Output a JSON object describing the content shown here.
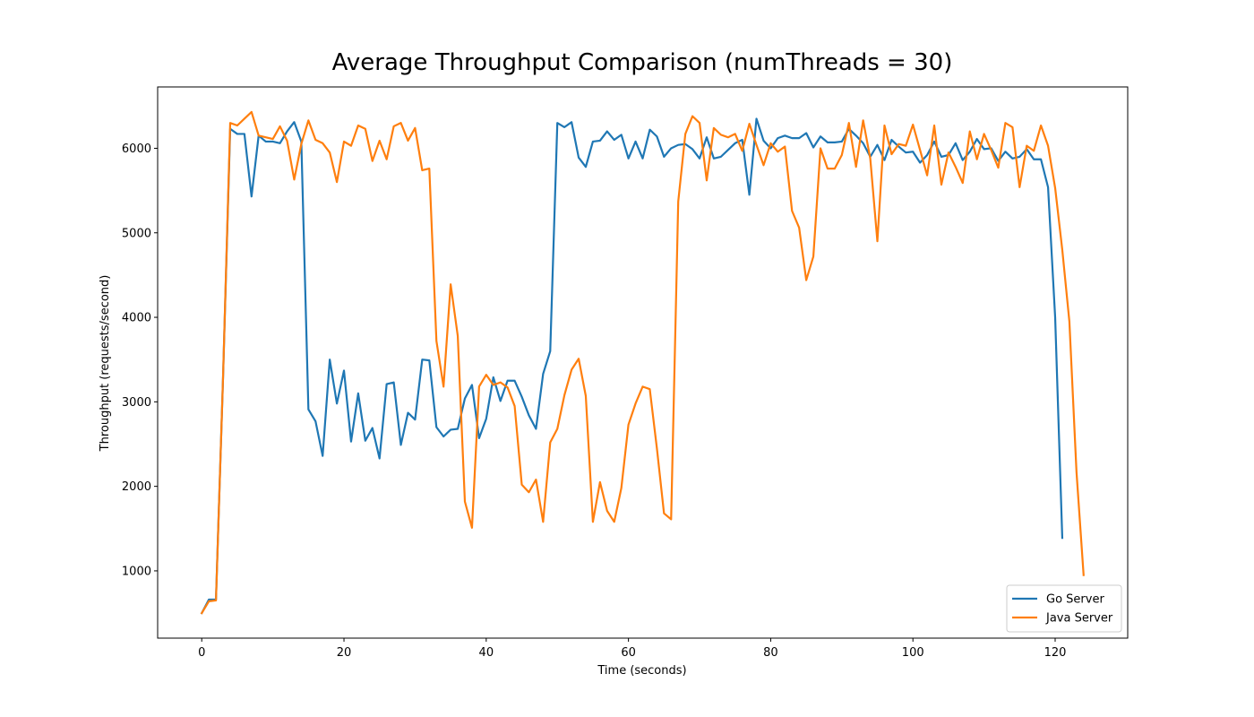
{
  "chart_data": {
    "type": "line",
    "title": "Average Throughput Comparison (numThreads = 30)",
    "x_label": "Time (seconds)",
    "y_label": "Throughput (requests/second)",
    "x": [
      0,
      1,
      2,
      3,
      4,
      5,
      6,
      7,
      8,
      9,
      10,
      11,
      12,
      13,
      14,
      15,
      16,
      17,
      18,
      19,
      20,
      21,
      22,
      23,
      24,
      25,
      26,
      27,
      28,
      29,
      30,
      31,
      32,
      33,
      34,
      35,
      36,
      37,
      38,
      39,
      40,
      41,
      42,
      43,
      44,
      45,
      46,
      47,
      48,
      49,
      50,
      51,
      52,
      53,
      54,
      55,
      56,
      57,
      58,
      59,
      60,
      61,
      62,
      63,
      64,
      65,
      66,
      67,
      68,
      69,
      70,
      71,
      72,
      73,
      74,
      75,
      76,
      77,
      78,
      79,
      80,
      81,
      82,
      83,
      84,
      85,
      86,
      87,
      88,
      89,
      90,
      91,
      92,
      93,
      94,
      95,
      96,
      97,
      98,
      99,
      100,
      101,
      102,
      103,
      104,
      105,
      106,
      107,
      108,
      109,
      110,
      111,
      112,
      113,
      114,
      115,
      116,
      117,
      118,
      119,
      120,
      121,
      122,
      123,
      124
    ],
    "series": [
      {
        "name": "Go Server",
        "color": "#1f77b4",
        "values": [
          500,
          660,
          660,
          3300,
          6230,
          6170,
          6170,
          5430,
          6150,
          6080,
          6080,
          6060,
          6200,
          6310,
          6080,
          2910,
          2770,
          2360,
          3500,
          2980,
          3370,
          2530,
          3100,
          2540,
          2690,
          2330,
          3210,
          3230,
          2490,
          2870,
          2790,
          3500,
          3490,
          2700,
          2590,
          2670,
          2680,
          3040,
          3200,
          2570,
          2800,
          3290,
          3010,
          3250,
          3250,
          3060,
          2840,
          2680,
          3330,
          3600,
          6300,
          6250,
          6310,
          5890,
          5780,
          6080,
          6090,
          6200,
          6100,
          6160,
          5880,
          6080,
          5880,
          6220,
          6140,
          5900,
          6000,
          6040,
          6050,
          5990,
          5880,
          6130,
          5880,
          5900,
          5980,
          6060,
          6100,
          5450,
          6350,
          6090,
          6000,
          6120,
          6150,
          6120,
          6120,
          6180,
          6010,
          6140,
          6070,
          6070,
          6080,
          6230,
          6150,
          6060,
          5900,
          6040,
          5860,
          6100,
          6020,
          5950,
          5960,
          5830,
          5920,
          6080,
          5900,
          5920,
          6060,
          5860,
          5960,
          6110,
          5990,
          6000,
          5850,
          5960,
          5880,
          5900,
          5990,
          5870,
          5870,
          5540,
          4000,
          1390,
          null,
          null,
          null
        ]
      },
      {
        "name": "Java Server",
        "color": "#ff7f0e",
        "values": [
          500,
          640,
          650,
          3300,
          6300,
          6270,
          6350,
          6430,
          6150,
          6130,
          6110,
          6260,
          6090,
          5630,
          6050,
          6330,
          6100,
          6060,
          5950,
          5600,
          6080,
          6030,
          6270,
          6230,
          5850,
          6090,
          5870,
          6260,
          6300,
          6090,
          6240,
          5740,
          5760,
          3720,
          3180,
          4390,
          3780,
          1820,
          1510,
          3180,
          3320,
          3200,
          3230,
          3170,
          2950,
          2020,
          1930,
          2080,
          1580,
          2520,
          2680,
          3080,
          3380,
          3510,
          3070,
          1580,
          2050,
          1710,
          1580,
          1980,
          2730,
          2980,
          3180,
          3150,
          2450,
          1680,
          1610,
          5370,
          6170,
          6380,
          6300,
          5620,
          6240,
          6160,
          6130,
          6170,
          5970,
          6290,
          6040,
          5800,
          6060,
          5960,
          6020,
          5260,
          5060,
          4440,
          4720,
          6000,
          5760,
          5760,
          5920,
          6300,
          5780,
          6330,
          5880,
          4900,
          6270,
          5930,
          6050,
          6030,
          6280,
          5980,
          5680,
          6270,
          5570,
          5950,
          5780,
          5590,
          6200,
          5870,
          6170,
          5980,
          5770,
          6300,
          6250,
          5540,
          6030,
          5970,
          6270,
          6030,
          5530,
          4800,
          3950,
          2170,
          950
        ]
      }
    ],
    "xlim": [
      -6.2,
      130.2
    ],
    "ylim": [
      204,
      6726
    ],
    "xticks": [
      0,
      20,
      40,
      60,
      80,
      100,
      120
    ],
    "yticks": [
      1000,
      2000,
      3000,
      4000,
      5000,
      6000
    ],
    "legend": "lower right"
  }
}
